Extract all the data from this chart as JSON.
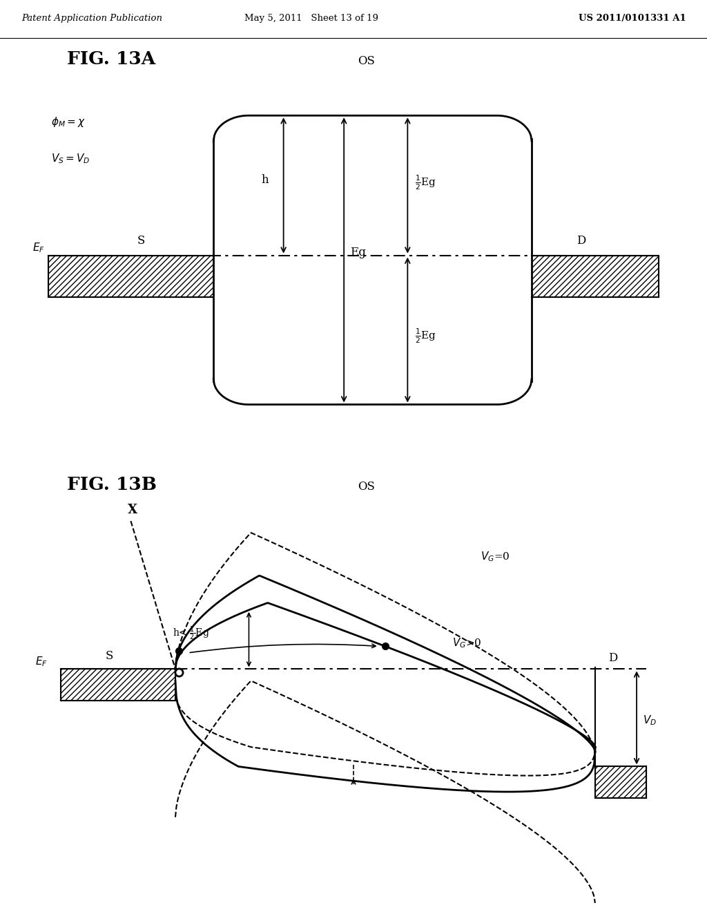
{
  "header_left": "Patent Application Publication",
  "header_mid": "May 5, 2011   Sheet 13 of 19",
  "header_right": "US 2011/0101331 A1",
  "fig13a_label": "FIG. 13A",
  "fig13b_label": "FIG. 13B",
  "os_label": "OS",
  "s_label": "S",
  "d_label": "D",
  "x_label": "X",
  "bg_color": "#ffffff"
}
